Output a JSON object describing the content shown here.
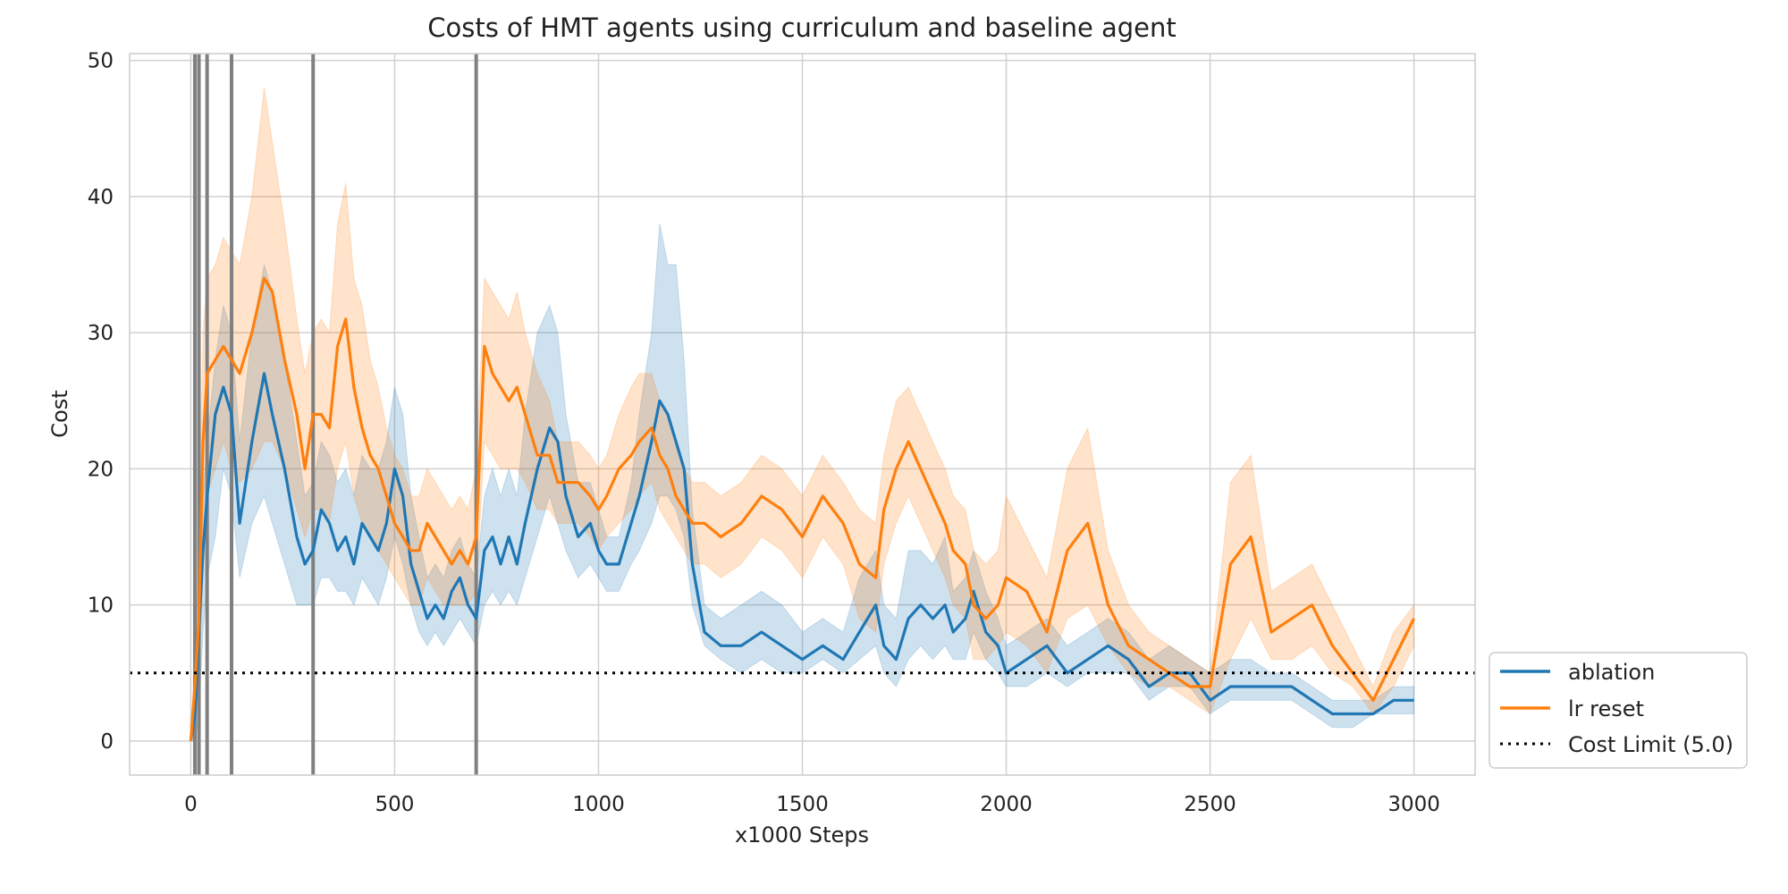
{
  "chart_data": {
    "type": "line",
    "title": "Costs of HMT agents using curriculum and baseline agent",
    "xlabel": "x1000 Steps",
    "ylabel": "Cost",
    "xlim": [
      -150,
      3150
    ],
    "ylim": [
      -2.5,
      50.5
    ],
    "xticks": [
      0,
      500,
      1000,
      1500,
      2000,
      2500,
      3000
    ],
    "yticks": [
      0,
      10,
      20,
      30,
      40,
      50
    ],
    "grid": true,
    "legend_position": "lower-right-outside",
    "curriculum_switch_steps": [
      10,
      20,
      40,
      100,
      300,
      700
    ],
    "series": [
      {
        "name": "ablation",
        "color": "#1f77b4",
        "x": [
          0,
          10,
          20,
          30,
          40,
          60,
          80,
          100,
          120,
          150,
          180,
          200,
          230,
          260,
          280,
          300,
          320,
          340,
          360,
          380,
          400,
          420,
          440,
          460,
          480,
          500,
          520,
          540,
          560,
          580,
          600,
          620,
          640,
          660,
          680,
          700,
          720,
          740,
          760,
          780,
          800,
          820,
          850,
          880,
          900,
          920,
          950,
          980,
          1000,
          1020,
          1050,
          1080,
          1100,
          1130,
          1150,
          1170,
          1190,
          1210,
          1230,
          1260,
          1300,
          1350,
          1400,
          1450,
          1500,
          1550,
          1600,
          1640,
          1680,
          1700,
          1730,
          1760,
          1790,
          1820,
          1850,
          1870,
          1900,
          1920,
          1950,
          1980,
          2000,
          2050,
          2100,
          2150,
          2200,
          2250,
          2300,
          2350,
          2400,
          2450,
          2500,
          2550,
          2600,
          2650,
          2700,
          2750,
          2800,
          2850,
          2900,
          2950,
          3000
        ],
        "values": [
          0,
          2,
          8,
          14,
          18,
          24,
          26,
          24,
          16,
          22,
          27,
          24,
          20,
          15,
          13,
          14,
          17,
          16,
          14,
          15,
          13,
          16,
          15,
          14,
          16,
          20,
          18,
          13,
          11,
          9,
          10,
          9,
          11,
          12,
          10,
          9,
          14,
          15,
          13,
          15,
          13,
          16,
          20,
          23,
          22,
          18,
          15,
          16,
          14,
          13,
          13,
          16,
          18,
          22,
          25,
          24,
          22,
          20,
          13,
          8,
          7,
          7,
          8,
          7,
          6,
          7,
          6,
          8,
          10,
          7,
          6,
          9,
          10,
          9,
          10,
          8,
          9,
          11,
          8,
          7,
          5,
          6,
          7,
          5,
          6,
          7,
          6,
          4,
          5,
          5,
          3,
          4,
          4,
          4,
          4,
          3,
          2,
          2,
          2,
          3,
          3
        ],
        "band": [
          [
            0,
            0
          ],
          [
            0,
            5
          ],
          [
            2,
            12
          ],
          [
            8,
            18
          ],
          [
            12,
            22
          ],
          [
            15,
            28
          ],
          [
            20,
            32
          ],
          [
            18,
            30
          ],
          [
            12,
            22
          ],
          [
            16,
            30
          ],
          [
            18,
            35
          ],
          [
            16,
            33
          ],
          [
            13,
            28
          ],
          [
            10,
            22
          ],
          [
            10,
            18
          ],
          [
            10,
            19
          ],
          [
            12,
            22
          ],
          [
            12,
            21
          ],
          [
            11,
            19
          ],
          [
            11,
            20
          ],
          [
            10,
            18
          ],
          [
            12,
            21
          ],
          [
            11,
            20
          ],
          [
            10,
            20
          ],
          [
            12,
            22
          ],
          [
            15,
            26
          ],
          [
            13,
            24
          ],
          [
            10,
            18
          ],
          [
            8,
            15
          ],
          [
            7,
            12
          ],
          [
            8,
            13
          ],
          [
            7,
            12
          ],
          [
            8,
            14
          ],
          [
            9,
            15
          ],
          [
            8,
            13
          ],
          [
            7,
            12
          ],
          [
            10,
            18
          ],
          [
            11,
            20
          ],
          [
            10,
            18
          ],
          [
            11,
            20
          ],
          [
            10,
            18
          ],
          [
            12,
            24
          ],
          [
            15,
            30
          ],
          [
            18,
            32
          ],
          [
            16,
            30
          ],
          [
            14,
            24
          ],
          [
            12,
            19
          ],
          [
            13,
            19
          ],
          [
            12,
            17
          ],
          [
            11,
            15
          ],
          [
            11,
            15
          ],
          [
            13,
            19
          ],
          [
            14,
            24
          ],
          [
            16,
            30
          ],
          [
            18,
            38
          ],
          [
            18,
            35
          ],
          [
            17,
            35
          ],
          [
            15,
            28
          ],
          [
            10,
            17
          ],
          [
            7,
            10
          ],
          [
            6,
            9
          ],
          [
            5,
            10
          ],
          [
            6,
            11
          ],
          [
            5,
            10
          ],
          [
            5,
            8
          ],
          [
            6,
            9
          ],
          [
            5,
            8
          ],
          [
            6,
            12
          ],
          [
            7,
            14
          ],
          [
            5,
            10
          ],
          [
            4,
            9
          ],
          [
            6,
            14
          ],
          [
            7,
            14
          ],
          [
            6,
            13
          ],
          [
            7,
            15
          ],
          [
            6,
            11
          ],
          [
            6,
            12
          ],
          [
            8,
            14
          ],
          [
            6,
            11
          ],
          [
            5,
            9
          ],
          [
            4,
            7
          ],
          [
            4,
            8
          ],
          [
            5,
            9
          ],
          [
            4,
            7
          ],
          [
            5,
            8
          ],
          [
            5,
            9
          ],
          [
            5,
            8
          ],
          [
            3,
            6
          ],
          [
            4,
            7
          ],
          [
            4,
            6
          ],
          [
            2,
            5
          ],
          [
            3,
            6
          ],
          [
            3,
            6
          ],
          [
            3,
            5
          ],
          [
            3,
            5
          ],
          [
            2,
            4
          ],
          [
            1,
            3
          ],
          [
            1,
            3
          ],
          [
            2,
            3
          ],
          [
            2,
            4
          ],
          [
            2,
            4
          ]
        ]
      },
      {
        "name": "lr reset",
        "color": "#ff7f0e",
        "x": [
          0,
          10,
          20,
          30,
          40,
          60,
          80,
          100,
          120,
          150,
          180,
          200,
          230,
          260,
          280,
          300,
          320,
          340,
          360,
          380,
          400,
          420,
          440,
          460,
          480,
          500,
          520,
          540,
          560,
          580,
          600,
          620,
          640,
          660,
          680,
          700,
          720,
          740,
          760,
          780,
          800,
          820,
          850,
          880,
          900,
          920,
          950,
          980,
          1000,
          1020,
          1050,
          1080,
          1100,
          1130,
          1150,
          1170,
          1190,
          1210,
          1230,
          1260,
          1300,
          1350,
          1400,
          1450,
          1500,
          1550,
          1600,
          1640,
          1680,
          1700,
          1730,
          1760,
          1790,
          1820,
          1850,
          1870,
          1900,
          1920,
          1950,
          1980,
          2000,
          2050,
          2100,
          2150,
          2200,
          2250,
          2300,
          2350,
          2400,
          2450,
          2500,
          2550,
          2600,
          2650,
          2700,
          2750,
          2800,
          2850,
          2900,
          2950,
          3000
        ],
        "values": [
          0,
          4,
          9,
          22,
          27,
          28,
          29,
          28,
          27,
          30,
          34,
          33,
          28,
          24,
          20,
          24,
          24,
          23,
          29,
          31,
          26,
          23,
          21,
          20,
          18,
          16,
          15,
          14,
          14,
          16,
          15,
          14,
          13,
          14,
          13,
          15,
          29,
          27,
          26,
          25,
          26,
          24,
          21,
          21,
          19,
          19,
          19,
          18,
          17,
          18,
          20,
          21,
          22,
          23,
          21,
          20,
          18,
          17,
          16,
          16,
          15,
          16,
          18,
          17,
          15,
          18,
          16,
          13,
          12,
          17,
          20,
          22,
          20,
          18,
          16,
          14,
          13,
          10,
          9,
          10,
          12,
          11,
          8,
          14,
          16,
          10,
          7,
          6,
          5,
          4,
          4,
          13,
          15,
          8,
          9,
          10,
          7,
          5,
          3,
          6,
          9
        ],
        "band": [
          [
            0,
            0
          ],
          [
            1,
            7
          ],
          [
            4,
            14
          ],
          [
            12,
            30
          ],
          [
            18,
            34
          ],
          [
            20,
            35
          ],
          [
            22,
            37
          ],
          [
            20,
            36
          ],
          [
            19,
            35
          ],
          [
            20,
            40
          ],
          [
            22,
            48
          ],
          [
            22,
            44
          ],
          [
            20,
            38
          ],
          [
            17,
            31
          ],
          [
            15,
            27
          ],
          [
            17,
            30
          ],
          [
            17,
            31
          ],
          [
            16,
            30
          ],
          [
            20,
            38
          ],
          [
            22,
            41
          ],
          [
            18,
            34
          ],
          [
            16,
            32
          ],
          [
            15,
            28
          ],
          [
            14,
            26
          ],
          [
            13,
            23
          ],
          [
            12,
            21
          ],
          [
            11,
            20
          ],
          [
            10,
            18
          ],
          [
            10,
            18
          ],
          [
            12,
            20
          ],
          [
            11,
            19
          ],
          [
            10,
            18
          ],
          [
            10,
            17
          ],
          [
            10,
            18
          ],
          [
            10,
            17
          ],
          [
            11,
            20
          ],
          [
            22,
            34
          ],
          [
            21,
            33
          ],
          [
            20,
            32
          ],
          [
            20,
            31
          ],
          [
            20,
            33
          ],
          [
            19,
            30
          ],
          [
            17,
            27
          ],
          [
            17,
            25
          ],
          [
            16,
            22
          ],
          [
            16,
            22
          ],
          [
            16,
            22
          ],
          [
            15,
            21
          ],
          [
            14,
            20
          ],
          [
            15,
            21
          ],
          [
            16,
            24
          ],
          [
            17,
            26
          ],
          [
            18,
            27
          ],
          [
            19,
            27
          ],
          [
            17,
            25
          ],
          [
            16,
            24
          ],
          [
            15,
            22
          ],
          [
            14,
            20
          ],
          [
            13,
            19
          ],
          [
            13,
            19
          ],
          [
            12,
            18
          ],
          [
            13,
            19
          ],
          [
            15,
            21
          ],
          [
            14,
            20
          ],
          [
            12,
            18
          ],
          [
            15,
            21
          ],
          [
            13,
            19
          ],
          [
            9,
            17
          ],
          [
            8,
            16
          ],
          [
            13,
            21
          ],
          [
            16,
            25
          ],
          [
            18,
            26
          ],
          [
            16,
            24
          ],
          [
            14,
            22
          ],
          [
            12,
            20
          ],
          [
            10,
            18
          ],
          [
            9,
            17
          ],
          [
            6,
            14
          ],
          [
            6,
            13
          ],
          [
            7,
            14
          ],
          [
            8,
            18
          ],
          [
            7,
            15
          ],
          [
            5,
            12
          ],
          [
            9,
            20
          ],
          [
            10,
            23
          ],
          [
            7,
            14
          ],
          [
            5,
            10
          ],
          [
            4,
            8
          ],
          [
            4,
            7
          ],
          [
            3,
            6
          ],
          [
            2,
            5
          ],
          [
            6,
            19
          ],
          [
            9,
            21
          ],
          [
            6,
            11
          ],
          [
            6,
            12
          ],
          [
            7,
            13
          ],
          [
            5,
            10
          ],
          [
            4,
            7
          ],
          [
            2,
            4
          ],
          [
            4,
            8
          ],
          [
            7,
            10
          ]
        ]
      },
      {
        "name": "Cost Limit (5.0)",
        "color": "#000000",
        "style": "dotted",
        "constant": 5.0
      }
    ]
  }
}
